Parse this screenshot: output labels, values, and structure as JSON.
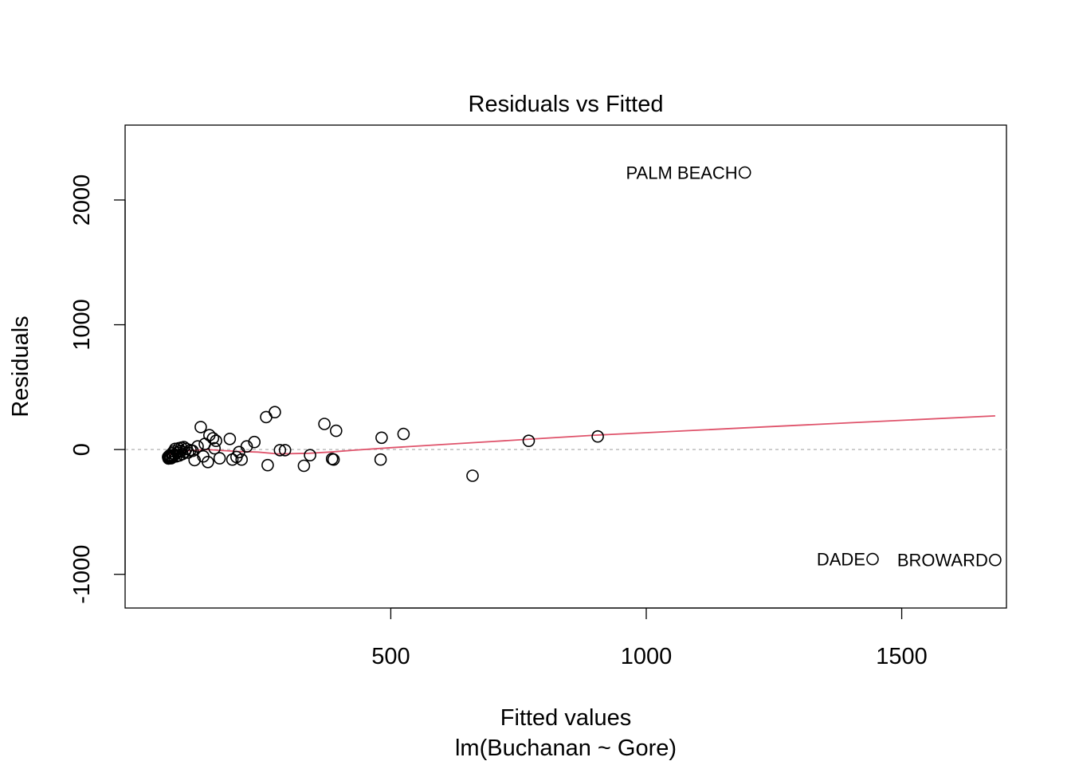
{
  "chart_data": {
    "type": "scatter",
    "title": "Residuals vs Fitted",
    "xlabel": "Fitted values",
    "xlabel_sub": "lm(Buchanan ~ Gore)",
    "ylabel": "Residuals",
    "xlim": [
      -20,
      1705
    ],
    "ylim": [
      -1270,
      2600
    ],
    "x_ticks": [
      500,
      1000,
      1500
    ],
    "x_tick_labels": [
      "500",
      "1000",
      "1500"
    ],
    "y_ticks": [
      -1000,
      0,
      1000,
      2000
    ],
    "y_tick_labels": [
      "-1000",
      "0",
      "1000",
      "2000"
    ],
    "grid": false,
    "legend": "none",
    "colors": {
      "points": "#000000",
      "smoother": "#DF536B",
      "reference": "#BEBEBE"
    },
    "points": [
      {
        "x": 64,
        "y": -60
      },
      {
        "x": 65,
        "y": -72
      },
      {
        "x": 66,
        "y": -52
      },
      {
        "x": 67,
        "y": -66
      },
      {
        "x": 68,
        "y": -45
      },
      {
        "x": 69,
        "y": -58
      },
      {
        "x": 70,
        "y": -70
      },
      {
        "x": 72,
        "y": -30
      },
      {
        "x": 73,
        "y": -62
      },
      {
        "x": 74,
        "y": -48
      },
      {
        "x": 75,
        "y": -15
      },
      {
        "x": 77,
        "y": -40
      },
      {
        "x": 78,
        "y": 5
      },
      {
        "x": 80,
        "y": -55
      },
      {
        "x": 82,
        "y": -25
      },
      {
        "x": 85,
        "y": 10
      },
      {
        "x": 86,
        "y": -48
      },
      {
        "x": 88,
        "y": -10
      },
      {
        "x": 90,
        "y": 15
      },
      {
        "x": 92,
        "y": -36
      },
      {
        "x": 95,
        "y": 20
      },
      {
        "x": 97,
        "y": -20
      },
      {
        "x": 100,
        "y": 5
      },
      {
        "x": 103,
        "y": -25
      },
      {
        "x": 108,
        "y": -5
      },
      {
        "x": 112,
        "y": -10
      },
      {
        "x": 116,
        "y": -85
      },
      {
        "x": 122,
        "y": 25
      },
      {
        "x": 128,
        "y": 180
      },
      {
        "x": 133,
        "y": -55
      },
      {
        "x": 136,
        "y": 45
      },
      {
        "x": 142,
        "y": -100
      },
      {
        "x": 145,
        "y": 115
      },
      {
        "x": 152,
        "y": 90
      },
      {
        "x": 155,
        "y": 10
      },
      {
        "x": 158,
        "y": 70
      },
      {
        "x": 165,
        "y": -70
      },
      {
        "x": 185,
        "y": 85
      },
      {
        "x": 190,
        "y": -80
      },
      {
        "x": 198,
        "y": -60
      },
      {
        "x": 203,
        "y": -20
      },
      {
        "x": 208,
        "y": -80
      },
      {
        "x": 218,
        "y": 25
      },
      {
        "x": 233,
        "y": 60
      },
      {
        "x": 256,
        "y": 260
      },
      {
        "x": 259,
        "y": -125
      },
      {
        "x": 273,
        "y": 300
      },
      {
        "x": 283,
        "y": -5
      },
      {
        "x": 293,
        "y": -5
      },
      {
        "x": 330,
        "y": -130
      },
      {
        "x": 342,
        "y": -45
      },
      {
        "x": 370,
        "y": 205
      },
      {
        "x": 385,
        "y": -75
      },
      {
        "x": 388,
        "y": -80
      },
      {
        "x": 393,
        "y": 150
      },
      {
        "x": 480,
        "y": -80
      },
      {
        "x": 482,
        "y": 95
      },
      {
        "x": 525,
        "y": 125
      },
      {
        "x": 660,
        "y": -210
      },
      {
        "x": 770,
        "y": 70
      },
      {
        "x": 905,
        "y": 105
      },
      {
        "x": 1193,
        "y": 2220
      },
      {
        "x": 1443,
        "y": -878
      },
      {
        "x": 1683,
        "y": -885
      }
    ],
    "labels": [
      {
        "text": "PALM BEACH",
        "x": 1193,
        "y": 2220
      },
      {
        "text": "DADE",
        "x": 1443,
        "y": -878
      },
      {
        "text": "BROWARD",
        "x": 1683,
        "y": -885
      }
    ],
    "smoother": [
      {
        "x": 64,
        "y": -40
      },
      {
        "x": 100,
        "y": -10
      },
      {
        "x": 140,
        "y": 0
      },
      {
        "x": 200,
        "y": -15
      },
      {
        "x": 240,
        "y": -20
      },
      {
        "x": 280,
        "y": -35
      },
      {
        "x": 340,
        "y": -30
      },
      {
        "x": 380,
        "y": -20
      },
      {
        "x": 430,
        "y": -5
      },
      {
        "x": 500,
        "y": 15
      },
      {
        "x": 600,
        "y": 40
      },
      {
        "x": 700,
        "y": 65
      },
      {
        "x": 800,
        "y": 90
      },
      {
        "x": 900,
        "y": 115
      },
      {
        "x": 1000,
        "y": 135
      },
      {
        "x": 1200,
        "y": 175
      },
      {
        "x": 1400,
        "y": 215
      },
      {
        "x": 1683,
        "y": 270
      }
    ]
  }
}
